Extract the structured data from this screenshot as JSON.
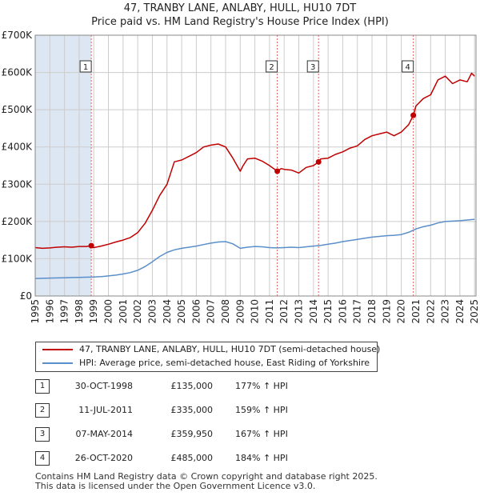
{
  "title_line1": "47, TRANBY LANE, ANLABY, HULL, HU10 7DT",
  "title_line2": "Price paid vs. HM Land Registry's House Price Index (HPI)",
  "legend": {
    "property_label": "47, TRANBY LANE, ANLABY, HULL, HU10 7DT (semi-detached house)",
    "hpi_label": "HPI: Average price, semi-detached house, East Riding of Yorkshire"
  },
  "transactions": [
    {
      "num": "1",
      "date": "30-OCT-1998",
      "price": "£135,000",
      "hpi": "177% ↑ HPI"
    },
    {
      "num": "2",
      "date": "11-JUL-2011",
      "price": "£335,000",
      "hpi": "159% ↑ HPI"
    },
    {
      "num": "3",
      "date": "07-MAY-2014",
      "price": "£359,950",
      "hpi": "167% ↑ HPI"
    },
    {
      "num": "4",
      "date": "26-OCT-2020",
      "price": "£485,000",
      "hpi": "184% ↑ HPI"
    }
  ],
  "footer_line1": "Contains HM Land Registry data © Crown copyright and database right 2025.",
  "footer_line2": "This data is licensed under the Open Government Licence v3.0.",
  "colors": {
    "property": "#c00000",
    "hpi": "#5b8fc9",
    "shade": "#dde6f3",
    "marker_line": "#e06060"
  },
  "chart_data": {
    "type": "line",
    "title": "47, TRANBY LANE, ANLABY, HULL, HU10 7DT — Price paid vs. HM Land Registry's House Price Index (HPI)",
    "xlabel": "",
    "ylabel": "",
    "xlim": [
      1995.0,
      2025.1
    ],
    "ylim": [
      0,
      700000
    ],
    "x_ticks": [
      "1995",
      "1996",
      "1997",
      "1998",
      "1999",
      "2000",
      "2001",
      "2002",
      "2003",
      "2004",
      "2005",
      "2006",
      "2007",
      "2008",
      "2009",
      "2010",
      "2011",
      "2012",
      "2013",
      "2014",
      "2015",
      "2016",
      "2017",
      "2018",
      "2019",
      "2020",
      "2021",
      "2022",
      "2023",
      "2024",
      "2025"
    ],
    "y_ticks": [
      {
        "value": 0,
        "label": "£0"
      },
      {
        "value": 100000,
        "label": "£100K"
      },
      {
        "value": 200000,
        "label": "£200K"
      },
      {
        "value": 300000,
        "label": "£300K"
      },
      {
        "value": 400000,
        "label": "£400K"
      },
      {
        "value": 500000,
        "label": "£500K"
      },
      {
        "value": 600000,
        "label": "£600K"
      },
      {
        "value": 700000,
        "label": "£700K"
      }
    ],
    "shaded_period": [
      1995.0,
      1998.83
    ],
    "transactions": [
      {
        "label": "1",
        "x": 1998.83,
        "y": 135000
      },
      {
        "label": "2",
        "x": 2011.53,
        "y": 335000
      },
      {
        "label": "3",
        "x": 2014.35,
        "y": 359950
      },
      {
        "label": "4",
        "x": 2020.82,
        "y": 485000
      }
    ],
    "series": [
      {
        "name": "47, TRANBY LANE, ANLABY, HULL, HU10 7DT (semi-detached house)",
        "x": [
          1995.0,
          1995.5,
          1996.0,
          1996.5,
          1997.0,
          1997.5,
          1998.0,
          1998.5,
          1998.83,
          1999.0,
          1999.5,
          2000.0,
          2000.5,
          2001.0,
          2001.5,
          2002.0,
          2002.5,
          2003.0,
          2003.5,
          2004.0,
          2004.5,
          2005.0,
          2005.5,
          2006.0,
          2006.5,
          2007.0,
          2007.5,
          2008.0,
          2008.5,
          2009.0,
          2009.2,
          2009.5,
          2010.0,
          2010.5,
          2011.0,
          2011.53,
          2011.8,
          2012.0,
          2012.5,
          2013.0,
          2013.5,
          2014.0,
          2014.35,
          2014.5,
          2015.0,
          2015.5,
          2016.0,
          2016.5,
          2017.0,
          2017.5,
          2018.0,
          2018.5,
          2019.0,
          2019.5,
          2020.0,
          2020.5,
          2020.82,
          2021.0,
          2021.5,
          2022.0,
          2022.5,
          2023.0,
          2023.5,
          2024.0,
          2024.5,
          2024.8,
          2025.0
        ],
        "values": [
          130000,
          128000,
          129000,
          131000,
          132000,
          131000,
          133000,
          133000,
          135000,
          130000,
          134000,
          139000,
          145000,
          150000,
          157000,
          170000,
          195000,
          230000,
          270000,
          300000,
          360000,
          365000,
          375000,
          385000,
          400000,
          405000,
          408000,
          400000,
          370000,
          335000,
          350000,
          368000,
          370000,
          362000,
          350000,
          335000,
          342000,
          340000,
          338000,
          330000,
          345000,
          350000,
          359950,
          368000,
          370000,
          380000,
          387000,
          397000,
          403000,
          420000,
          430000,
          435000,
          440000,
          430000,
          440000,
          460000,
          485000,
          510000,
          530000,
          540000,
          580000,
          590000,
          570000,
          580000,
          575000,
          598000,
          590000
        ]
      },
      {
        "name": "HPI: Average price, semi-detached house, East Riding of Yorkshire",
        "x": [
          1995.0,
          1995.5,
          1996.0,
          1996.5,
          1997.0,
          1997.5,
          1998.0,
          1998.5,
          1999.0,
          1999.5,
          2000.0,
          2000.5,
          2001.0,
          2001.5,
          2002.0,
          2002.5,
          2003.0,
          2003.5,
          2004.0,
          2004.5,
          2005.0,
          2005.5,
          2006.0,
          2006.5,
          2007.0,
          2007.5,
          2008.0,
          2008.5,
          2009.0,
          2009.5,
          2010.0,
          2010.5,
          2011.0,
          2011.5,
          2012.0,
          2012.5,
          2013.0,
          2013.5,
          2014.0,
          2014.5,
          2015.0,
          2015.5,
          2016.0,
          2016.5,
          2017.0,
          2017.5,
          2018.0,
          2018.5,
          2019.0,
          2019.5,
          2020.0,
          2020.5,
          2021.0,
          2021.5,
          2022.0,
          2022.5,
          2023.0,
          2023.5,
          2024.0,
          2024.5,
          2025.0
        ],
        "values": [
          47000,
          47500,
          48000,
          48500,
          49000,
          49500,
          50000,
          50500,
          51000,
          52000,
          54000,
          56000,
          59000,
          63000,
          69000,
          79000,
          92000,
          106000,
          117000,
          124000,
          128000,
          131000,
          134000,
          138000,
          142000,
          145000,
          146000,
          140000,
          128000,
          131000,
          133000,
          132000,
          130000,
          129000,
          130000,
          131000,
          130000,
          132000,
          134000,
          136000,
          139000,
          142000,
          146000,
          149000,
          152000,
          155000,
          158000,
          160000,
          162000,
          163000,
          165000,
          171000,
          180000,
          186000,
          190000,
          196000,
          200000,
          201000,
          202000,
          204000,
          206000
        ]
      }
    ]
  }
}
